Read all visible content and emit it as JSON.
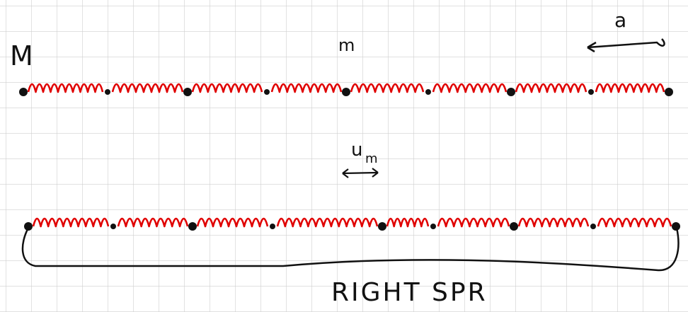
{
  "labels": {
    "mass_large": "M",
    "mass_small": "m",
    "spacing": "a",
    "displacement": "u",
    "displacement_sub": "m",
    "caption": "RIGHT SPR"
  }
}
